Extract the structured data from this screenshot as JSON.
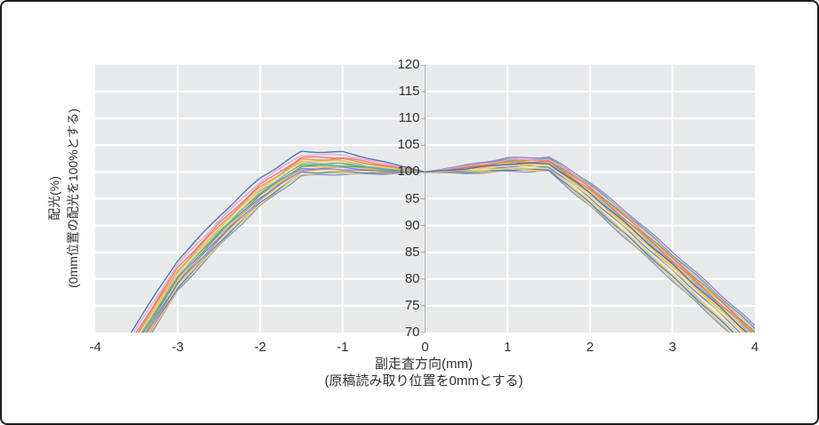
{
  "colors": {
    "frame_border": "#1c1c1c",
    "background": "#ffffff",
    "plot_background": "#e8e9eb",
    "gridline": "#ffffff",
    "axis_line": "#a3a3a3",
    "tick_mark": "#8f8f8f",
    "text": "#303030"
  },
  "chart_data": {
    "type": "line",
    "title": "",
    "xlabel_lines": [
      "副走査方向(mm)",
      "(原稿読み取り位置を0mmとする)"
    ],
    "ylabel_lines": [
      "配光(%)",
      "(0mm位置の配光を100%とする)"
    ],
    "xlim": [
      -4,
      4
    ],
    "ylim": [
      70,
      120
    ],
    "x_ticks": [
      -4,
      -3,
      -2,
      -1,
      0,
      1,
      2,
      3,
      4
    ],
    "y_ticks": [
      70,
      75,
      80,
      85,
      90,
      95,
      100,
      105,
      110,
      115,
      120
    ],
    "grid": true,
    "legend": false,
    "y_axis_position_x": 0,
    "x": [
      -4,
      -3.5,
      -3,
      -2.5,
      -2,
      -1.5,
      -1,
      -0.5,
      0,
      0.5,
      1,
      1.5,
      2,
      2.5,
      3,
      3.5,
      4
    ],
    "series": [
      {
        "color": "#3f6fb5",
        "values": [
          59.0,
          71.7,
          83.5,
          91.7,
          98.9,
          103.8,
          103.7,
          101.9,
          100,
          100.6,
          101.5,
          101.6,
          96.1,
          89.5,
          82.7,
          75.8,
          68.7
        ]
      },
      {
        "color": "#f29ec4",
        "values": [
          58.1,
          70.8,
          82.7,
          90.9,
          98.2,
          103.2,
          103.2,
          101.6,
          100,
          101.1,
          102.2,
          102.4,
          97.5,
          91.2,
          84.3,
          77.5,
          70.5
        ]
      },
      {
        "color": "#e8746e",
        "values": [
          57.4,
          70.1,
          82.1,
          90.3,
          97.6,
          102.7,
          102.7,
          101.3,
          100,
          100.8,
          101.8,
          101.9,
          96.7,
          90.2,
          83.4,
          76.5,
          69.5
        ]
      },
      {
        "color": "#ef9143",
        "values": [
          56.9,
          69.6,
          81.6,
          89.9,
          97.2,
          102.3,
          102.4,
          101.1,
          100,
          100.9,
          102.0,
          102.1,
          97.0,
          90.6,
          83.7,
          76.9,
          69.9
        ]
      },
      {
        "color": "#f6c14d",
        "values": [
          56.6,
          69.3,
          81.3,
          89.5,
          96.9,
          102.1,
          102.1,
          101.0,
          100,
          100.8,
          101.7,
          101.9,
          96.6,
          90.1,
          83.3,
          76.4,
          69.3
        ]
      },
      {
        "color": "#f3d66b",
        "values": [
          56.2,
          68.9,
          81.0,
          89.2,
          96.6,
          101.8,
          101.9,
          100.9,
          100,
          100.4,
          101.1,
          101.2,
          95.5,
          88.9,
          81.9,
          75.0,
          67.9
        ]
      },
      {
        "color": "#7aaedb",
        "values": [
          55.9,
          68.6,
          80.6,
          88.9,
          96.3,
          101.6,
          101.6,
          100.7,
          100,
          100.7,
          101.6,
          101.8,
          96.4,
          89.9,
          83.0,
          76.2,
          69.1
        ]
      },
      {
        "color": "#61a861",
        "values": [
          55.6,
          68.3,
          80.4,
          88.7,
          96.1,
          101.4,
          101.5,
          100.6,
          100,
          101.0,
          102.1,
          102.2,
          97.2,
          90.8,
          84.0,
          77.2,
          70.1
        ]
      },
      {
        "color": "#46a8a2",
        "values": [
          55.3,
          68.0,
          80.1,
          88.4,
          95.8,
          101.1,
          101.2,
          100.5,
          100,
          101.2,
          102.3,
          102.5,
          97.7,
          91.4,
          84.6,
          77.8,
          70.8
        ]
      },
      {
        "color": "#e9b84a",
        "values": [
          54.9,
          67.6,
          79.8,
          88.1,
          95.5,
          100.9,
          101.0,
          100.4,
          100,
          100.5,
          101.3,
          101.4,
          95.8,
          89.2,
          82.3,
          75.4,
          68.3
        ]
      },
      {
        "color": "#7581c4",
        "values": [
          54.5,
          67.2,
          79.4,
          87.8,
          95.2,
          100.6,
          100.8,
          100.2,
          100,
          100.3,
          101.0,
          101.0,
          95.2,
          88.5,
          81.6,
          74.7,
          67.5
        ]
      },
      {
        "color": "#a07cc5",
        "values": [
          54.2,
          66.9,
          79.1,
          87.4,
          94.9,
          100.4,
          100.5,
          100.1,
          100,
          101.3,
          102.6,
          102.8,
          98.1,
          91.8,
          85.1,
          78.3,
          71.3
        ]
      },
      {
        "color": "#f1cd59",
        "values": [
          53.8,
          66.5,
          78.8,
          87.1,
          94.6,
          100.1,
          100.3,
          100.0,
          100,
          100.1,
          100.6,
          100.7,
          94.6,
          87.8,
          80.9,
          73.9,
          66.7
        ]
      },
      {
        "color": "#5581c6",
        "values": [
          53.5,
          66.2,
          78.4,
          86.8,
          94.3,
          99.9,
          100.0,
          99.8,
          100,
          99.9,
          100.4,
          100.4,
          94.2,
          87.4,
          80.4,
          73.4,
          66.2
        ]
      },
      {
        "color": "#ecc24f",
        "values": [
          53.1,
          65.8,
          78.1,
          86.5,
          94.0,
          99.6,
          99.8,
          99.7,
          100,
          99.8,
          100.3,
          100.3,
          93.9,
          87.0,
          80.0,
          73.0,
          65.8
        ]
      },
      {
        "color": "#6f95cd",
        "values": [
          52.7,
          65.4,
          77.8,
          86.2,
          93.7,
          99.3,
          99.6,
          99.6,
          100,
          99.7,
          100.1,
          100.1,
          93.6,
          86.7,
          79.7,
          72.7,
          65.4
        ]
      },
      {
        "color": "#f5d264",
        "values": [
          55.1,
          67.8,
          79.9,
          88.2,
          95.7,
          101.0,
          101.1,
          100.4,
          100,
          100.6,
          101.4,
          101.5,
          96.0,
          89.4,
          82.5,
          75.6,
          68.5
        ]
      },
      {
        "color": "#86b7e0",
        "values": [
          56.5,
          69.2,
          81.2,
          89.5,
          96.9,
          102.0,
          102.1,
          101.0,
          100,
          100.0,
          100.5,
          100.6,
          94.4,
          87.6,
          80.6,
          73.7,
          66.5
        ]
      }
    ]
  }
}
